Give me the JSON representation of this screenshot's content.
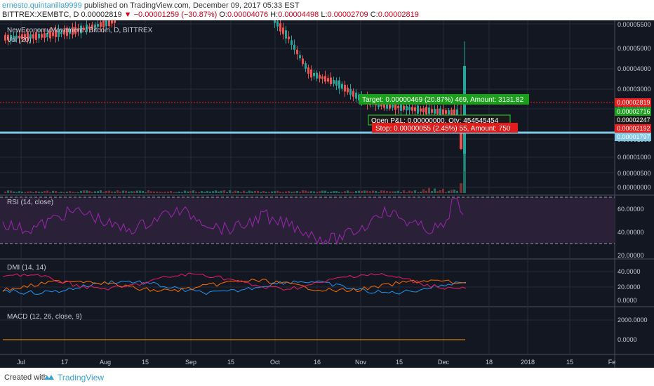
{
  "header": {
    "author": "ernesto.quintanilla9999",
    "published_text": "published on TradingView.com, December 09, 2017 05:33 EST",
    "symbol": "BITTREX:XEMBTC, D",
    "last_price": "0.00002819",
    "change_arrow": "▼",
    "change_text": "−0.00001259 (−30.87%)",
    "open_label": "O:",
    "open_value": "0.00004076",
    "high_label": "H:",
    "high_value": "0.00004498",
    "low_label": "L:",
    "low_value": "0.00002709",
    "close_label": "C:",
    "close_value": "0.00002819"
  },
  "main_pane": {
    "title": "NewEconomyMovement / Bitcoin, D, BITTREX",
    "vol_label": "Vol (20)",
    "axis_ticks": [
      "0.00005500",
      "0.00005000",
      "0.00004000",
      "0.00003000",
      "0.00002000",
      "0.00001500",
      "0.00001000",
      "0.00000500",
      "0.00000000"
    ],
    "price_tags": [
      {
        "text": "0.00002819",
        "color": "#e91e1e"
      },
      {
        "text": "0.00002716",
        "color": "#1e9e1e"
      },
      {
        "text": "0.00002247",
        "color": "#1b1b1b"
      },
      {
        "text": "0.00002192",
        "color": "#e91e1e"
      },
      {
        "text": "0.00001797",
        "color": "#7fc8e6"
      }
    ],
    "target_label": "Target: 0.00000469 (20.87%) 469, Amount: 3131.82",
    "open_pl_label": "Open P&L: 0.00000000, Qty: 454545454",
    "stop_label": "Stop: 0.00000055 (2.45%) 55, Amount: 750"
  },
  "rsi_pane": {
    "title": "RSI (14, close)",
    "axis_ticks": [
      "60.00000",
      "40.00000",
      "20.00000"
    ]
  },
  "dmi_pane": {
    "title": "DMI (14, 14)",
    "axis_ticks": [
      "40.0000",
      "20.0000",
      "0.0000"
    ]
  },
  "macd_pane": {
    "title": "MACD (12, 26, close, 9)",
    "axis_ticks": [
      "2000.0000",
      "0.0000"
    ]
  },
  "time_axis": [
    "Jul",
    "17",
    "Aug",
    "15",
    "Sep",
    "15",
    "Oct",
    "16",
    "Nov",
    "15",
    "Dec",
    "18",
    "2018",
    "15",
    "Fe"
  ],
  "footer": {
    "created_with": "Created with",
    "brand": "TradingView"
  },
  "colors": {
    "background": "#131722",
    "up": "#26a69a",
    "down": "#ef5350",
    "rsi_line": "#9c27b0",
    "accent": "#3aa1d8"
  }
}
